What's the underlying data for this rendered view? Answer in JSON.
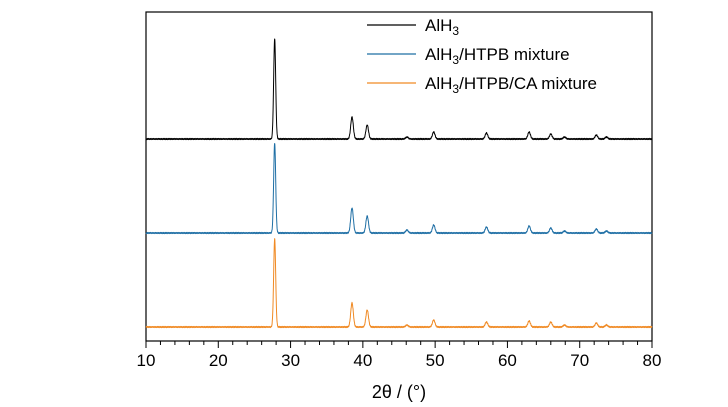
{
  "chart_data": {
    "type": "line",
    "xlabel": "2θ / (°)",
    "xlim": [
      10,
      80
    ],
    "xticks": [
      10,
      20,
      30,
      40,
      50,
      60,
      70,
      80
    ],
    "y_tick_labels": false,
    "grid": false,
    "legend_position": "top-right",
    "peak_positions": [
      27.8,
      38.5,
      40.6,
      46.1,
      49.8,
      57.1,
      63.0,
      66.0,
      67.9,
      72.3,
      73.7
    ],
    "series": [
      {
        "name": "AlH3",
        "name_base": "AlH",
        "name_sub": "3",
        "name_rest": "",
        "color": "#000000",
        "baseline": 2.0,
        "peaks": [
          1.0,
          0.22,
          0.14,
          0.02,
          0.07,
          0.06,
          0.07,
          0.05,
          0.02,
          0.04,
          0.02
        ]
      },
      {
        "name": "AlH3/HTPB mixture",
        "name_base": "AlH",
        "name_sub": "3",
        "name_rest": "/HTPB mixture",
        "color": "#1f6fa5",
        "baseline": 1.0,
        "peaks": [
          0.9,
          0.25,
          0.17,
          0.03,
          0.08,
          0.06,
          0.07,
          0.05,
          0.02,
          0.04,
          0.02
        ]
      },
      {
        "name": "AlH3/HTPB/CA mixture",
        "name_base": "AlH",
        "name_sub": "3",
        "name_rest": "/HTPB/CA mixture",
        "color": "#f08a24",
        "baseline": 0.0,
        "peaks": [
          0.88,
          0.24,
          0.17,
          0.02,
          0.07,
          0.05,
          0.06,
          0.05,
          0.02,
          0.04,
          0.02
        ]
      }
    ]
  }
}
